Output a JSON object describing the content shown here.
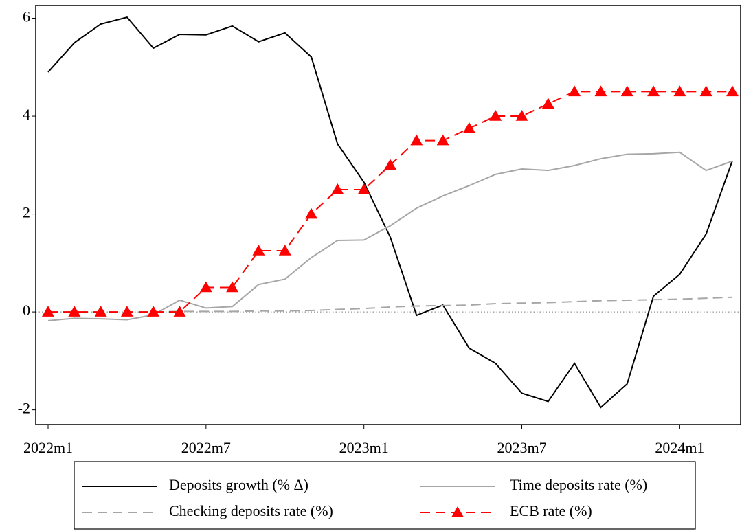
{
  "chart_data": {
    "type": "line",
    "categories": [
      "2022m1",
      null,
      null,
      null,
      null,
      null,
      "2022m7",
      null,
      null,
      null,
      null,
      null,
      "2023m1",
      null,
      null,
      null,
      null,
      null,
      "2023m7",
      null,
      null,
      null,
      null,
      null,
      "2024m1",
      null,
      null
    ],
    "series": [
      {
        "name": "Deposits growth (% Δ)",
        "color": "#000000",
        "dash": "solid",
        "values": [
          4.9,
          5.5,
          5.88,
          6.02,
          5.39,
          5.67,
          5.66,
          5.84,
          5.52,
          5.7,
          5.21,
          3.43,
          2.65,
          1.53,
          -0.07,
          0.14,
          -0.74,
          -1.05,
          -1.66,
          -1.83,
          -1.05,
          -1.95,
          -1.47,
          0.32,
          0.77,
          1.59,
          3.09
        ]
      },
      {
        "name": "Time deposits rate (%)",
        "color": "#a6a6a6",
        "dash": "solid",
        "values": [
          -0.18,
          -0.13,
          -0.14,
          -0.16,
          -0.06,
          0.24,
          0.08,
          0.11,
          0.56,
          0.67,
          1.11,
          1.46,
          1.47,
          1.76,
          2.12,
          2.37,
          2.58,
          2.81,
          2.92,
          2.89,
          2.99,
          3.13,
          3.22,
          3.23,
          3.26,
          2.89,
          3.08
        ]
      },
      {
        "name": "Checking deposits rate (%)",
        "color": "#a6a6a6",
        "dash": "dashed",
        "values": [
          0,
          0,
          0,
          0,
          0,
          0.01,
          0.01,
          0.01,
          0.02,
          0.02,
          0.03,
          0.05,
          0.07,
          0.1,
          0.12,
          0.13,
          0.14,
          0.17,
          0.18,
          0.19,
          0.21,
          0.23,
          0.24,
          0.25,
          0.26,
          0.28,
          0.3
        ]
      },
      {
        "name": "ECB rate (%)",
        "color": "#ff0000",
        "dash": "dashed",
        "marker": "triangle",
        "values": [
          0,
          0,
          0,
          0,
          0,
          0,
          0.5,
          0.5,
          1.25,
          1.25,
          2.0,
          2.5,
          2.5,
          3.0,
          3.5,
          3.5,
          3.75,
          4.0,
          4.0,
          4.25,
          4.5,
          4.5,
          4.5,
          4.5,
          4.5,
          4.5,
          4.5
        ]
      }
    ],
    "ylim": [
      -2.3,
      6.26
    ],
    "yticks": [
      -2,
      0,
      2,
      4,
      6
    ],
    "reference_line": 0,
    "grid": false,
    "legend": "bottom"
  }
}
